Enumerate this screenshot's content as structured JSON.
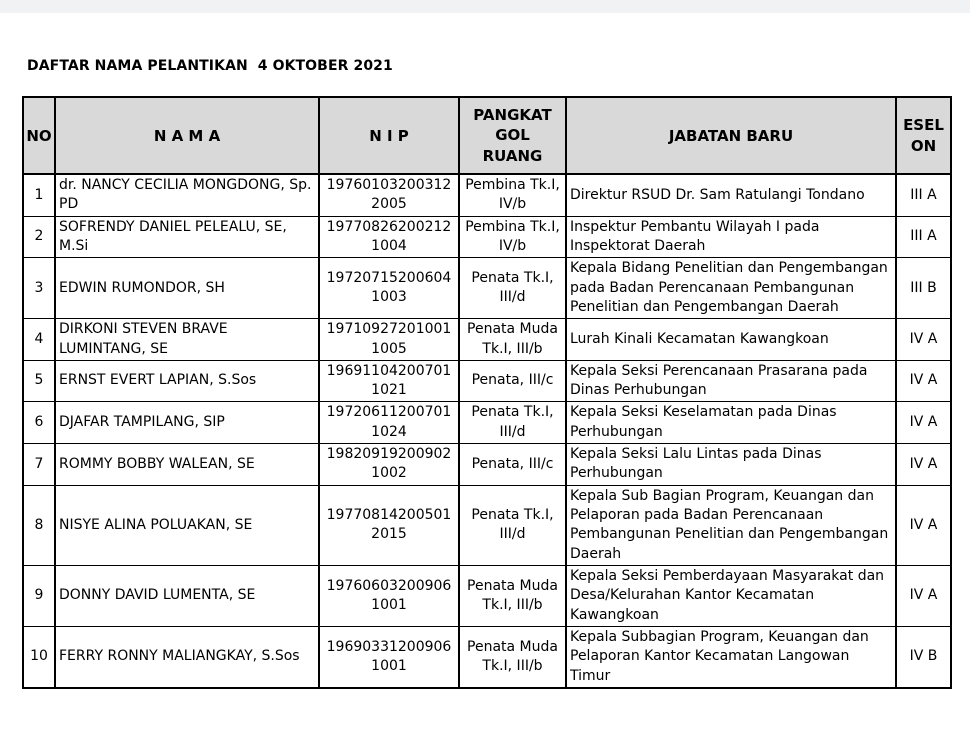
{
  "page": {
    "title": "DAFTAR NAMA PELANTIKAN  4 OKTOBER 2021"
  },
  "table": {
    "columns": [
      {
        "key": "no",
        "label": "NO"
      },
      {
        "key": "nama",
        "label": "N A M A"
      },
      {
        "key": "nip",
        "label": "N I P"
      },
      {
        "key": "pangkat",
        "label": "PANGKAT GOL RUANG"
      },
      {
        "key": "jabatan",
        "label": "JABATAN BARU"
      },
      {
        "key": "eselon",
        "label": "ESELON"
      }
    ],
    "rows": [
      {
        "no": "1",
        "nama": "dr. NANCY CECILIA MONGDONG, Sp. PD",
        "nip": "19760103200312 2005",
        "pangkat": "Pembina Tk.I, IV/b",
        "jabatan": "Direktur RSUD Dr. Sam Ratulangi Tondano",
        "eselon": "III A"
      },
      {
        "no": "2",
        "nama": "SOFRENDY DANIEL PELEALU, SE, M.Si",
        "nip": "19770826200212 1004",
        "pangkat": "Pembina Tk.I, IV/b",
        "jabatan": "Inspektur Pembantu Wilayah I pada Inspektorat Daerah",
        "eselon": "III A"
      },
      {
        "no": "3",
        "nama": "EDWIN RUMONDOR, SH",
        "nip": "19720715200604 1003",
        "pangkat": "Penata Tk.I, III/d",
        "jabatan": "Kepala Bidang Penelitian dan Pengembangan pada Badan Perencanaan Pembangunan Penelitian dan Pengembangan Daerah",
        "eselon": "III B"
      },
      {
        "no": "4",
        "nama": "DIRKONI STEVEN BRAVE LUMINTANG, SE",
        "nip": "19710927201001 1005",
        "pangkat": "Penata Muda Tk.I, III/b",
        "jabatan": "Lurah Kinali Kecamatan Kawangkoan",
        "eselon": "IV A"
      },
      {
        "no": "5",
        "nama": "ERNST EVERT LAPIAN, S.Sos",
        "nip": "19691104200701 1021",
        "pangkat": "Penata, III/c",
        "jabatan": "Kepala Seksi Perencanaan Prasarana pada Dinas Perhubungan",
        "eselon": "IV A"
      },
      {
        "no": "6",
        "nama": "DJAFAR TAMPILANG, SIP",
        "nip": "19720611200701 1024",
        "pangkat": "Penata Tk.I, III/d",
        "jabatan": "Kepala Seksi Keselamatan pada Dinas Perhubungan",
        "eselon": "IV A"
      },
      {
        "no": "7",
        "nama": "ROMMY BOBBY WALEAN, SE",
        "nip": "19820919200902 1002",
        "pangkat": "Penata, III/c",
        "jabatan": "Kepala Seksi Lalu Lintas pada Dinas Perhubungan",
        "eselon": "IV A"
      },
      {
        "no": "8",
        "nama": "NISYE ALINA POLUAKAN, SE",
        "nip": "19770814200501 2015",
        "pangkat": "Penata Tk.I, III/d",
        "jabatan": "Kepala Sub Bagian Program, Keuangan dan Pelaporan pada Badan Perencanaan Pembangunan Penelitian dan Pengembangan Daerah",
        "eselon": "IV A"
      },
      {
        "no": "9",
        "nama": "DONNY DAVID LUMENTA, SE",
        "nip": "19760603200906 1001",
        "pangkat": "Penata Muda Tk.I, III/b",
        "jabatan": "Kepala Seksi Pemberdayaan Masyarakat dan Desa/Kelurahan Kantor Kecamatan Kawangkoan",
        "eselon": "IV A"
      },
      {
        "no": "10",
        "nama": "FERRY RONNY MALIANGKAY, S.Sos",
        "nip": "19690331200906 1001",
        "pangkat": "Penata Muda Tk.I, III/b",
        "jabatan": "Kepala Subbagian Program, Keuangan dan Pelaporan  Kantor Kecamatan Langowan Timur",
        "eselon": "IV B"
      }
    ]
  }
}
